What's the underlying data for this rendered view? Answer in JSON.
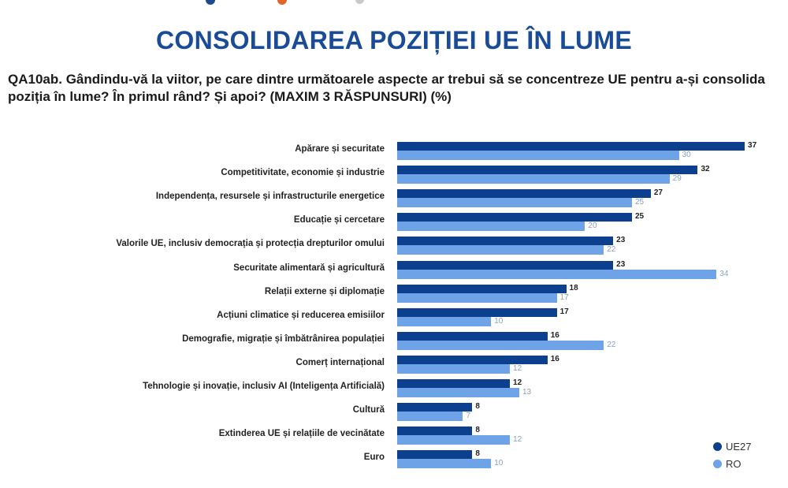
{
  "header": {
    "title": "CONSOLIDAREA POZIȚIEI UE ÎN LUME",
    "question": "QA10ab. Gândindu-vă la viitor, pe care dintre următoarele aspecte ar trebui să se concentreze UE pentru a-și consolida poziția în lume? În primul rând? Și apoi? (MAXIM 3 RĂSPUNSURI) (%)",
    "top_dots": [
      {
        "color": "#1d4a8c",
        "x": 261,
        "size": 12
      },
      {
        "color": "#e0652a",
        "x": 352,
        "size": 12
      },
      {
        "color": "#c9c9c9",
        "x": 451,
        "size": 11
      },
      {
        "color": "#bbbbbb",
        "x": 482,
        "size": 4
      }
    ]
  },
  "colors": {
    "UE27": "#0d3f8f",
    "RO": "#6ea3e8",
    "title": "#1a4b96"
  },
  "legend": {
    "items": [
      {
        "label": "UE27",
        "color": "#0d3f8f"
      },
      {
        "label": "RO",
        "color": "#6ea3e8"
      }
    ]
  },
  "chart_data": {
    "type": "bar",
    "orientation": "horizontal",
    "title": "CONSOLIDAREA POZIȚIEI UE ÎN LUME",
    "subtitle": "QA10ab. Gândindu-vă la viitor, pe care dintre următoarele aspecte ar trebui să se concentreze UE pentru a-și consolida poziția în lume? În primul rând? Și apoi? (MAXIM 3 RĂSPUNSURI) (%)",
    "xlabel": "",
    "ylabel": "",
    "grid": false,
    "legend_position": "bottom-right",
    "categories": [
      "Apărare și securitate",
      "Competitivitate, economie și industrie",
      "Independența, resursele și infrastructurile energetice",
      "Educație și cercetare",
      "Valorile UE, inclusiv democrația și protecția drepturilor omului",
      "Securitate alimentară și agricultură",
      "Relații externe și diplomație",
      "Acțiuni climatice și reducerea emisiilor",
      "Demografie, migrație și îmbătrânirea populației",
      "Comerț internațional",
      "Tehnologie și inovație, inclusiv AI (Inteligența Artificială)",
      "Cultură",
      "Extinderea UE și relațiile de vecinătate",
      "Euro"
    ],
    "series": [
      {
        "name": "UE27",
        "values": [
          37,
          32,
          27,
          25,
          23,
          23,
          18,
          17,
          16,
          16,
          12,
          8,
          8,
          8
        ]
      },
      {
        "name": "RO",
        "values": [
          30,
          29,
          25,
          20,
          22,
          34,
          17,
          10,
          22,
          12,
          13,
          7,
          12,
          10
        ]
      }
    ]
  }
}
